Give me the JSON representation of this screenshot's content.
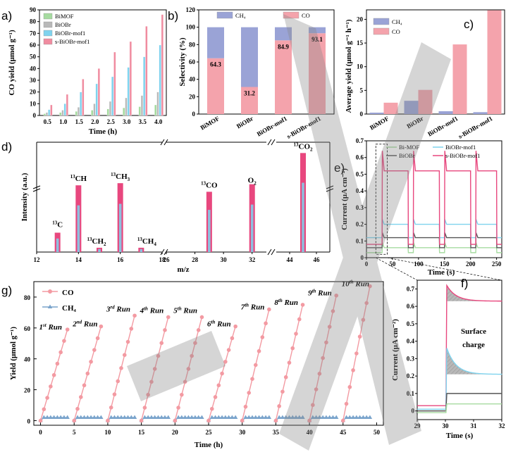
{
  "panel_labels": [
    "a)",
    "b)",
    "c)",
    "d)",
    "e)",
    "f)",
    "g)"
  ],
  "colors": {
    "BiMOF": "#a6dba0",
    "BiOBr": "#b9b9b9",
    "BiOBr-mof1": "#7fd3ee",
    "s-BiOBr-mof1": "#f08ca0",
    "CH4": "#9aa3d6",
    "CO": "#f4a3ac",
    "ms": "#e8477e",
    "co_line": "#f39aa2",
    "ch4_line": "#7aa4cc"
  },
  "chart_data": [
    {
      "panel": "a",
      "type": "bar",
      "categories": [
        "0.5",
        "1.0",
        "1.5",
        "2.0",
        "2.5",
        "3.0",
        "3.5",
        "4.0"
      ],
      "series": [
        {
          "name": "BiMOF",
          "values": [
            1.5,
            2.5,
            3.5,
            4.5,
            5.5,
            6.5,
            7.5,
            9
          ]
        },
        {
          "name": "BiOBr",
          "values": [
            2.5,
            4.5,
            7,
            10,
            12,
            15,
            17,
            20
          ]
        },
        {
          "name": "BiOBr-mof1",
          "values": [
            5,
            10,
            20,
            27,
            33,
            41,
            50,
            60
          ]
        },
        {
          "name": "s-BiOBr-mof1",
          "values": [
            9,
            18,
            31,
            40,
            54,
            63,
            76,
            86
          ]
        }
      ],
      "xlabel": "Time (h)",
      "ylabel": "CO yield (μmol g⁻¹)",
      "ylim": [
        0,
        90
      ],
      "yticks": [
        0,
        10,
        20,
        30,
        40,
        50,
        60,
        70,
        80,
        90
      ],
      "legend": "top-left"
    },
    {
      "panel": "b",
      "type": "bar",
      "stacked": true,
      "categories": [
        "BiMOF",
        "BiOBr",
        "BiOBr-mof1",
        "s-BiOBr-mof1"
      ],
      "series": [
        {
          "name": "CO",
          "values": [
            64.3,
            31.2,
            84.9,
            93.1
          ]
        },
        {
          "name": "CH₄",
          "values": [
            35.7,
            68.8,
            15.1,
            6.9
          ]
        }
      ],
      "data_labels": [
        "64.3",
        "31.2",
        "84.9",
        "93.1"
      ],
      "ylabel": "Selectivity (%)",
      "ylim": [
        0,
        120
      ],
      "yticks": [
        0,
        20,
        40,
        60,
        80,
        100,
        120
      ],
      "legend": "top"
    },
    {
      "panel": "c",
      "type": "bar",
      "categories": [
        "BiMOF",
        "BiOBr",
        "BiOBr-mof1",
        "s-BiOBr-mof1"
      ],
      "series": [
        {
          "name": "CH₄",
          "values": [
            0.3,
            2.8,
            0.6,
            0.4
          ]
        },
        {
          "name": "CO",
          "values": [
            2.4,
            5.1,
            14.7,
            21.9
          ]
        }
      ],
      "ylabel": "Average yield (μmol g⁻¹ h⁻¹)",
      "ylim": [
        0,
        22
      ],
      "yticks": [
        0,
        5,
        10,
        15,
        20
      ],
      "legend": "top-left"
    },
    {
      "panel": "d",
      "type": "bar",
      "xlabel": "m/z",
      "ylabel": "Intensity (a.u.)",
      "segments": [
        {
          "range": [
            12,
            18
          ],
          "ticks": [
            12,
            14,
            16,
            18
          ]
        },
        {
          "range": [
            26,
            33
          ],
          "ticks": [
            26,
            28,
            30,
            32
          ]
        },
        {
          "range": [
            43,
            47
          ],
          "ticks": [
            44,
            46
          ]
        }
      ],
      "peaks": [
        {
          "mz": 13,
          "value": 0.18,
          "label": "13",
          "sub": "C"
        },
        {
          "mz": 14,
          "value": 0.62,
          "label": "13",
          "sub": "CH"
        },
        {
          "mz": 15,
          "value": 0.04,
          "label": "13",
          "sub": "CH",
          "subsub": "2"
        },
        {
          "mz": 16,
          "value": 0.64,
          "label": "13",
          "sub": "CH",
          "subsub": "3"
        },
        {
          "mz": 17,
          "value": 0.04,
          "label": "13",
          "sub": "CH",
          "subsub": "4"
        },
        {
          "mz": 29,
          "value": 0.56,
          "label": "13",
          "sub": "CO"
        },
        {
          "mz": 32,
          "value": 0.63,
          "label": "",
          "sub": "O",
          "subsub": "2"
        },
        {
          "mz": 45,
          "value": 0.92,
          "label": "13",
          "sub": "CO",
          "subsub": "2"
        }
      ]
    },
    {
      "panel": "e",
      "type": "line",
      "xlabel": "Time (s)",
      "ylabel": "Current (μA cm⁻²)",
      "xlim": [
        0,
        260
      ],
      "ylim": [
        0,
        0.7
      ],
      "xticks": [
        0,
        50,
        100,
        150,
        200,
        250
      ],
      "yticks": [
        0,
        0.1,
        0.2,
        0.3,
        0.4,
        0.5,
        0.6,
        0.7
      ],
      "on_off": [
        [
          30,
          80
        ],
        [
          90,
          140
        ],
        [
          150,
          200
        ],
        [
          210,
          250
        ]
      ],
      "series": [
        {
          "name": "Bi-MOF",
          "base": 0.03,
          "on": 0.06
        },
        {
          "name": "BiOBr",
          "base": 0.06,
          "on": 0.12
        },
        {
          "name": "BiOBr-mof1",
          "base": 0.12,
          "on": 0.2
        },
        {
          "name": "s-BiOBr-mof1",
          "base": 0.08,
          "on": 0.52
        }
      ],
      "legend": "top"
    },
    {
      "panel": "f",
      "type": "line",
      "xlabel": "Time (s)",
      "ylabel": "Current (μA cm⁻²)",
      "xlim": [
        29,
        32
      ],
      "ylim": [
        -0.05,
        0.75
      ],
      "xticks": [
        29,
        30,
        31,
        32
      ],
      "yticks": [
        0,
        0.1,
        0.2,
        0.3,
        0.4,
        0.5,
        0.6,
        0.7
      ],
      "annotation": "Surface charge",
      "series": [
        {
          "name": "s-BiOBr-mof1",
          "before": 0.03,
          "peak": 0.72,
          "steady": 0.63
        },
        {
          "name": "BiOBr-mof1",
          "before": 0.01,
          "peak": 0.36,
          "steady": 0.21
        },
        {
          "name": "BiOBr",
          "before": 0.0,
          "peak": 0.1,
          "steady": 0.1
        },
        {
          "name": "BiMOF",
          "before": -0.01,
          "peak": 0.04,
          "steady": 0.04
        }
      ]
    },
    {
      "panel": "g",
      "type": "line",
      "xlabel": "Time (h)",
      "ylabel": "Yield (μmol g⁻¹)",
      "xlim": [
        -1,
        51
      ],
      "ylim": [
        -3,
        90
      ],
      "xticks": [
        0,
        5,
        10,
        15,
        20,
        25,
        30,
        35,
        40,
        45,
        50
      ],
      "yticks": [
        0,
        20,
        40,
        60,
        80
      ],
      "legend": "top-left",
      "runs": [
        {
          "label": "1",
          "sup": "st",
          "start": 0,
          "end": 4,
          "co_end": 59
        },
        {
          "label": "2",
          "sup": "nd",
          "start": 5,
          "end": 9,
          "co_end": 61
        },
        {
          "label": "3",
          "sup": "rd",
          "start": 10,
          "end": 14,
          "co_end": 68
        },
        {
          "label": "4",
          "sup": "th",
          "start": 15,
          "end": 19,
          "co_end": 67
        },
        {
          "label": "5",
          "sup": "th",
          "start": 20,
          "end": 24,
          "co_end": 67
        },
        {
          "label": "6",
          "sup": "th",
          "start": 25,
          "end": 29,
          "co_end": 61
        },
        {
          "label": "7",
          "sup": "th",
          "start": 30,
          "end": 34,
          "co_end": 72
        },
        {
          "label": "8",
          "sup": "th",
          "start": 35,
          "end": 39,
          "co_end": 75
        },
        {
          "label": "9",
          "sup": "th",
          "start": 40,
          "end": 44,
          "co_end": 81
        },
        {
          "label": "10",
          "sup": "th",
          "start": 45,
          "end": 49,
          "co_end": 87
        }
      ],
      "ch4_level": 2,
      "series_names": [
        "CO",
        "CH₄"
      ],
      "run_word": "Run"
    }
  ]
}
